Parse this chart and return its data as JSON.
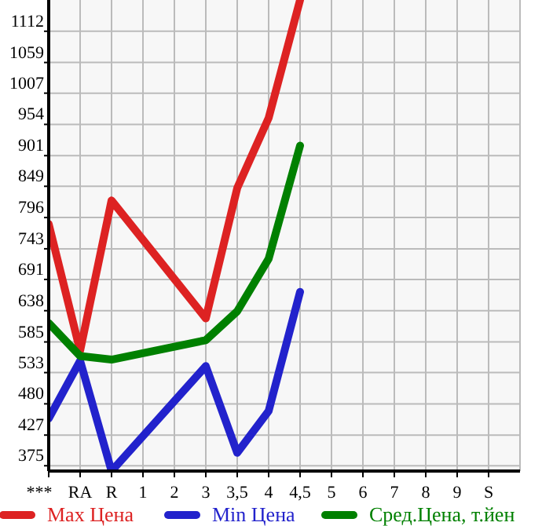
{
  "chart_data": {
    "type": "line",
    "categories": [
      "***",
      "RA",
      "R",
      "1",
      "2",
      "3",
      "3,5",
      "4",
      "4,5",
      "5",
      "6",
      "7",
      "8",
      "9",
      "S"
    ],
    "series": [
      {
        "name": "Max Цена",
        "color": "#dd2222",
        "values": [
          785,
          570,
          825,
          null,
          null,
          625,
          846,
          965,
          1165,
          null,
          null,
          null,
          null,
          null,
          null
        ]
      },
      {
        "name": "Min Цена",
        "color": "#2222cc",
        "values": [
          455,
          553,
          366,
          null,
          null,
          544,
          397,
          468,
          670,
          null,
          null,
          null,
          null,
          null,
          null
        ]
      },
      {
        "name": "Сред.Цена, т.йен",
        "color": "#008000",
        "values": [
          617,
          561,
          555,
          null,
          null,
          588,
          637,
          726,
          918,
          null,
          null,
          null,
          null,
          null,
          null
        ]
      }
    ],
    "ylim": [
      366,
      1165
    ],
    "yticks": [
      375,
      427,
      480,
      533,
      585,
      638,
      691,
      743,
      796,
      849,
      901,
      954,
      1007,
      1059,
      1112
    ],
    "grid": true,
    "legend": "bottom",
    "marker": "none",
    "line_style": "solid"
  }
}
